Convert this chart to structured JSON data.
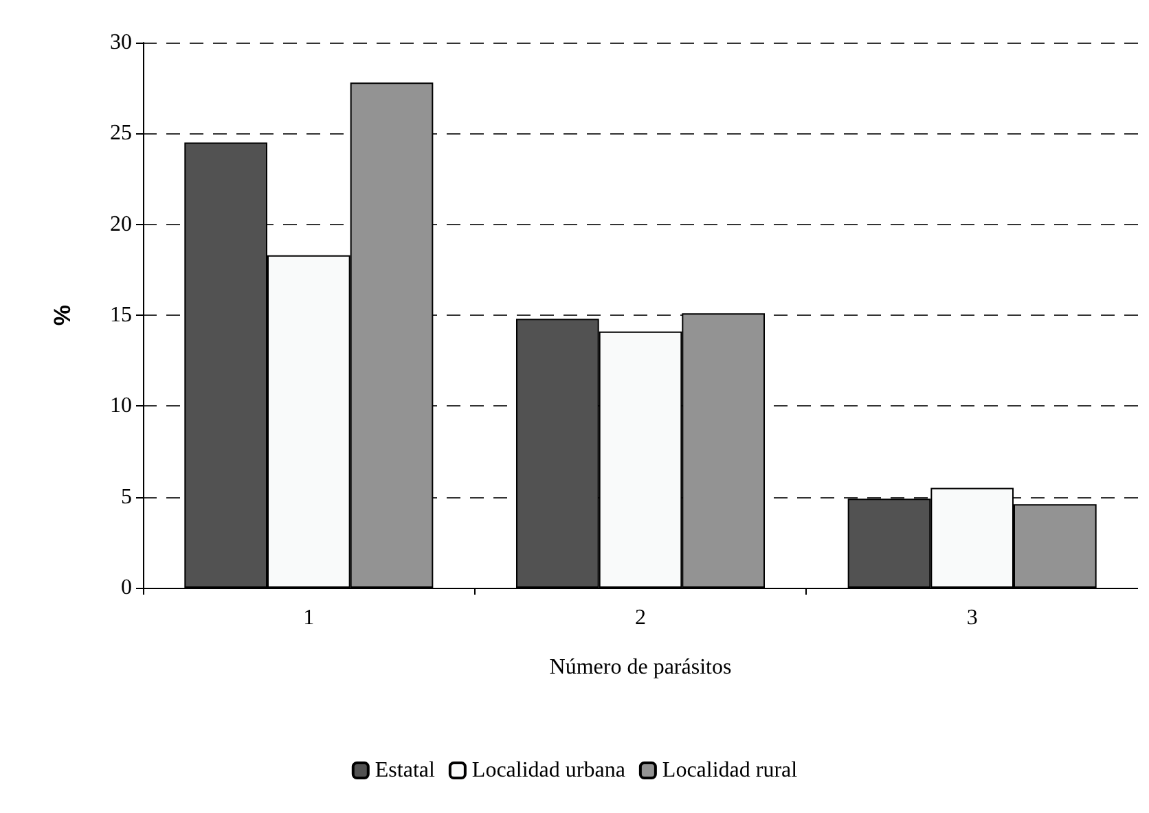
{
  "chart_data": {
    "type": "bar",
    "xlabel": "Número de parásitos",
    "ylabel": "%",
    "categories": [
      "1",
      "2",
      "3"
    ],
    "series": [
      {
        "name": "Estatal",
        "color": "#525252",
        "values": [
          24.5,
          14.8,
          4.9
        ]
      },
      {
        "name": "Localidad urbana",
        "color": "#f9fafa",
        "values": [
          18.3,
          14.1,
          5.5
        ]
      },
      {
        "name": "Localidad rural",
        "color": "#939393",
        "values": [
          27.8,
          15.1,
          4.6
        ]
      }
    ],
    "ylim": [
      0,
      30
    ],
    "yticks": [
      0,
      5,
      10,
      15,
      20,
      25,
      30
    ],
    "grid": "y",
    "legend": "bottom"
  }
}
